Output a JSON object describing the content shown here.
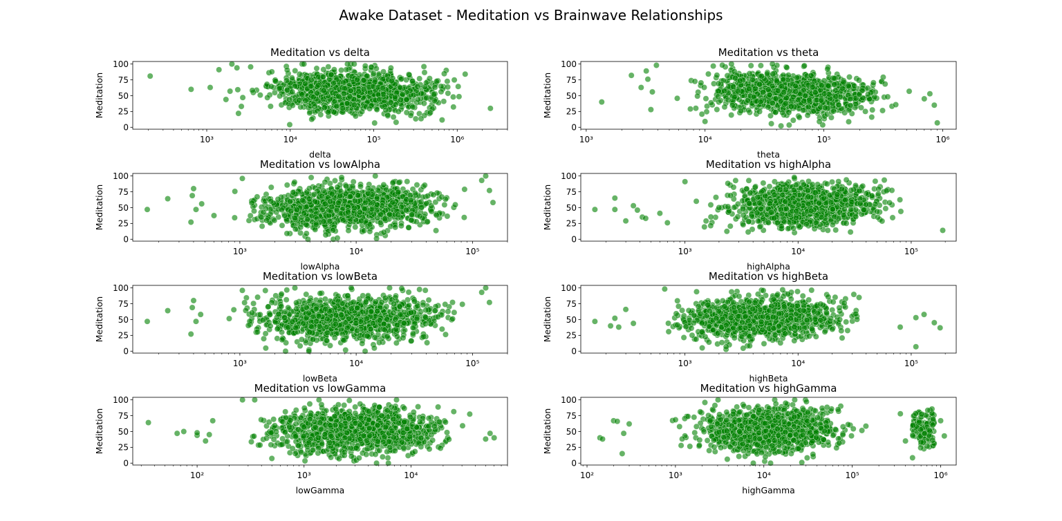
{
  "figure": {
    "title": "Awake Dataset - Meditation vs Brainwave Relationships",
    "point_color": "#008000",
    "point_edge_color": "#ffffff",
    "point_opacity": 0.6
  },
  "chart_data": [
    {
      "type": "scatter",
      "title": "Meditation vs delta",
      "xlabel": "delta",
      "ylabel": "Meditation",
      "xscale": "log",
      "xlim": [
        130,
        4000000
      ],
      "ylim": [
        -3,
        104
      ],
      "x_ticks": [
        1000,
        10000,
        100000,
        1000000
      ],
      "x_tick_labels": [
        "10³",
        "10⁴",
        "10⁵",
        "10⁶"
      ],
      "y_ticks": [
        0,
        25,
        50,
        75,
        100
      ],
      "y_tick_labels": [
        "0",
        "25",
        "50",
        "75",
        "100"
      ],
      "grid": false,
      "cloud": {
        "xmin": 1500,
        "xmax": 2500000,
        "y_center_left": 64,
        "y_center_right": 49,
        "y_spread": 16,
        "count": 1200
      },
      "points": [
        [
          210,
          81
        ],
        [
          650,
          60
        ],
        [
          1100,
          63
        ],
        [
          1400,
          91
        ],
        [
          1700,
          44
        ],
        [
          2400,
          22
        ],
        [
          2300,
          94
        ],
        [
          1900,
          57
        ],
        [
          2000,
          100
        ],
        [
          2600,
          33
        ],
        [
          2700,
          47
        ],
        [
          2500000,
          30
        ]
      ]
    },
    {
      "type": "scatter",
      "title": "Meditation vs theta",
      "xlabel": "theta",
      "ylabel": "Meditation",
      "xscale": "log",
      "xlim": [
        900,
        1300000
      ],
      "ylim": [
        -3,
        104
      ],
      "x_ticks": [
        1000,
        10000,
        100000,
        1000000
      ],
      "x_tick_labels": [
        "10³",
        "10⁴",
        "10⁵",
        "10⁶"
      ],
      "y_ticks": [
        0,
        25,
        50,
        75,
        100
      ],
      "y_tick_labels": [
        "0",
        "25",
        "50",
        "75",
        "100"
      ],
      "grid": false,
      "cloud": {
        "xmin": 4000,
        "xmax": 700000,
        "y_center_left": 63,
        "y_center_right": 45,
        "y_spread": 16,
        "count": 1200
      },
      "points": [
        [
          1350,
          40
        ],
        [
          2400,
          82
        ],
        [
          2900,
          63
        ],
        [
          3200,
          89
        ],
        [
          3300,
          76
        ],
        [
          3500,
          28
        ],
        [
          3600,
          56
        ],
        [
          3900,
          98
        ],
        [
          900000,
          7
        ],
        [
          850000,
          35
        ],
        [
          780000,
          53
        ],
        [
          700000,
          45
        ]
      ]
    },
    {
      "type": "scatter",
      "title": "Meditation vs lowAlpha",
      "xlabel": "lowAlpha",
      "ylabel": "Meditation",
      "xscale": "log",
      "xlim": [
        120,
        200000
      ],
      "ylim": [
        -3,
        104
      ],
      "x_ticks": [
        1000,
        10000,
        100000
      ],
      "x_tick_labels": [
        "10³",
        "10⁴",
        "10⁵"
      ],
      "y_ticks": [
        0,
        25,
        50,
        75,
        100
      ],
      "y_tick_labels": [
        "0",
        "25",
        "50",
        "75",
        "100"
      ],
      "grid": false,
      "cloud": {
        "xmin": 500,
        "xmax": 150000,
        "y_center_left": 44,
        "y_center_right": 58,
        "y_spread": 17,
        "count": 1200
      },
      "points": [
        [
          160,
          47
        ],
        [
          240,
          64
        ],
        [
          380,
          27
        ],
        [
          390,
          69
        ],
        [
          400,
          80
        ],
        [
          420,
          47
        ],
        [
          470,
          56
        ],
        [
          1050,
          96
        ],
        [
          140000,
          77
        ],
        [
          130000,
          100
        ],
        [
          120000,
          93
        ],
        [
          150000,
          58
        ]
      ]
    },
    {
      "type": "scatter",
      "title": "Meditation vs highAlpha",
      "xlabel": "highAlpha",
      "ylabel": "Meditation",
      "xscale": "log",
      "xlim": [
        120,
        250000
      ],
      "ylim": [
        -3,
        104
      ],
      "x_ticks": [
        1000,
        10000,
        100000
      ],
      "x_tick_labels": [
        "10³",
        "10⁴",
        "10⁵"
      ],
      "y_ticks": [
        0,
        25,
        50,
        75,
        100
      ],
      "y_tick_labels": [
        "0",
        "25",
        "50",
        "75",
        "100"
      ],
      "grid": false,
      "cloud": {
        "xmin": 900,
        "xmax": 130000,
        "y_center_left": 47,
        "y_center_right": 60,
        "y_spread": 16,
        "count": 1200
      },
      "points": [
        [
          160,
          47
        ],
        [
          240,
          47
        ],
        [
          240,
          65
        ],
        [
          300,
          29
        ],
        [
          350,
          53
        ],
        [
          380,
          46
        ],
        [
          420,
          35
        ],
        [
          450,
          33
        ],
        [
          600,
          41
        ],
        [
          700,
          26
        ],
        [
          1000,
          91
        ],
        [
          190000,
          14
        ]
      ]
    },
    {
      "type": "scatter",
      "title": "Meditation vs lowBeta",
      "xlabel": "lowBeta",
      "ylabel": "Meditation",
      "xscale": "log",
      "xlim": [
        120,
        200000
      ],
      "ylim": [
        -3,
        104
      ],
      "x_ticks": [
        1000,
        10000,
        100000
      ],
      "x_tick_labels": [
        "10³",
        "10⁴",
        "10⁵"
      ],
      "y_ticks": [
        0,
        25,
        50,
        75,
        100
      ],
      "y_tick_labels": [
        "0",
        "25",
        "50",
        "75",
        "100"
      ],
      "grid": false,
      "cloud": {
        "xmin": 500,
        "xmax": 150000,
        "y_center_left": 46,
        "y_center_right": 58,
        "y_spread": 17,
        "count": 1200
      },
      "points": [
        [
          160,
          47
        ],
        [
          240,
          64
        ],
        [
          380,
          27
        ],
        [
          390,
          69
        ],
        [
          400,
          80
        ],
        [
          420,
          47
        ],
        [
          460,
          58
        ],
        [
          1050,
          96
        ],
        [
          140000,
          77
        ],
        [
          130000,
          100
        ],
        [
          120000,
          93
        ]
      ]
    },
    {
      "type": "scatter",
      "title": "Meditation vs highBeta",
      "xlabel": "highBeta",
      "ylabel": "Meditation",
      "xscale": "log",
      "xlim": [
        120,
        250000
      ],
      "ylim": [
        -3,
        104
      ],
      "x_ticks": [
        1000,
        10000,
        100000
      ],
      "x_tick_labels": [
        "10³",
        "10⁴",
        "10⁵"
      ],
      "y_ticks": [
        0,
        25,
        50,
        75,
        100
      ],
      "y_tick_labels": [
        "0",
        "25",
        "50",
        "75",
        "100"
      ],
      "grid": false,
      "cloud": {
        "xmin": 400,
        "xmax": 60000,
        "y_center_left": 46,
        "y_center_right": 58,
        "y_spread": 16,
        "count": 1200
      },
      "points": [
        [
          160,
          47
        ],
        [
          220,
          40
        ],
        [
          240,
          52
        ],
        [
          260,
          38
        ],
        [
          300,
          66
        ],
        [
          350,
          44
        ],
        [
          110000,
          7
        ],
        [
          110000,
          53
        ],
        [
          130000,
          58
        ],
        [
          160000,
          45
        ],
        [
          180000,
          37
        ],
        [
          80000,
          38
        ]
      ]
    },
    {
      "type": "scatter",
      "title": "Meditation vs lowGamma",
      "xlabel": "lowGamma",
      "ylabel": "Meditation",
      "xscale": "log",
      "xlim": [
        25,
        80000
      ],
      "ylim": [
        -3,
        104
      ],
      "x_ticks": [
        100,
        1000,
        10000
      ],
      "x_tick_labels": [
        "10²",
        "10³",
        "10⁴"
      ],
      "y_ticks": [
        0,
        25,
        50,
        75,
        100
      ],
      "y_tick_labels": [
        "0",
        "25",
        "50",
        "75",
        "100"
      ],
      "grid": false,
      "cloud": {
        "xmin": 150,
        "xmax": 60000,
        "y_center_left": 50,
        "y_center_right": 52,
        "y_spread": 17,
        "count": 1200
      },
      "points": [
        [
          35,
          64
        ],
        [
          65,
          47
        ],
        [
          75,
          50
        ],
        [
          100,
          44
        ],
        [
          100,
          48
        ],
        [
          120,
          35
        ],
        [
          130,
          45
        ],
        [
          140,
          67
        ],
        [
          60000,
          40
        ],
        [
          55000,
          47
        ],
        [
          50000,
          38
        ]
      ]
    },
    {
      "type": "scatter",
      "title": "Meditation vs highGamma",
      "xlabel": "highGamma",
      "ylabel": "Meditation",
      "xscale": "log",
      "xlim": [
        85,
        1500000
      ],
      "ylim": [
        -3,
        104
      ],
      "x_ticks": [
        100,
        1000,
        10000,
        100000,
        1000000
      ],
      "x_tick_labels": [
        "10²",
        "10³",
        "10⁴",
        "10⁵",
        "10⁶"
      ],
      "y_ticks": [
        0,
        25,
        50,
        75,
        100
      ],
      "y_tick_labels": [
        "0",
        "25",
        "50",
        "75",
        "100"
      ],
      "grid": false,
      "cloud": {
        "xmin": 500,
        "xmax": 250000,
        "y_center_left": 48,
        "y_center_right": 56,
        "y_spread": 18,
        "count": 1100
      },
      "cluster": {
        "xmin": 480000,
        "xmax": 850000,
        "y_center": 55,
        "y_spread": 14,
        "count": 130
      },
      "points": [
        [
          140,
          40
        ],
        [
          150,
          38
        ],
        [
          200,
          67
        ],
        [
          220,
          66
        ],
        [
          250,
          15
        ],
        [
          260,
          47
        ],
        [
          300,
          62
        ],
        [
          1000000,
          67
        ],
        [
          1100000,
          43
        ],
        [
          400000,
          35
        ],
        [
          350000,
          78
        ]
      ]
    }
  ]
}
